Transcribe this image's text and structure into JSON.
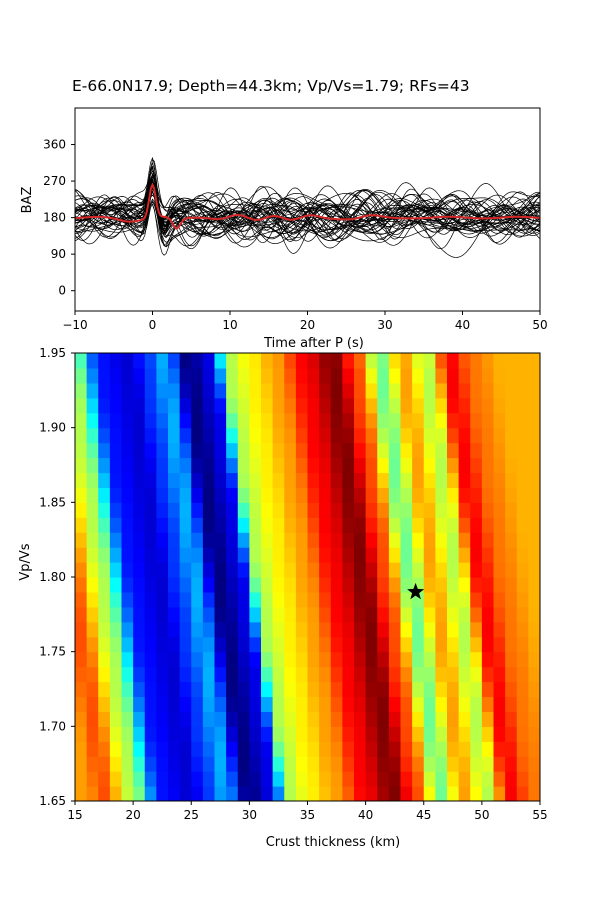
{
  "figure": {
    "title": "E-66.0N17.9; Depth=44.3km; Vp/Vs=1.79; RFs=43"
  },
  "chart_data": [
    {
      "type": "line",
      "name": "receiver-functions",
      "xlabel": "Time after P (s)",
      "ylabel": "BAZ",
      "xlim": [
        -10,
        50
      ],
      "ylim": [
        -50,
        450
      ],
      "xticks": [
        -10,
        0,
        10,
        20,
        30,
        40,
        50
      ],
      "yticks": [
        0,
        90,
        180,
        270,
        360
      ],
      "trace_count": 43,
      "trace_color": "#000000",
      "stack_color": "#d62728",
      "stack_baseline": 180,
      "stack_peak": {
        "x": 0,
        "y": 262
      },
      "traces_visible_range": [
        40,
        290
      ]
    },
    {
      "type": "heatmap",
      "name": "h-kappa-stack",
      "xlabel": "Crust thickness (km)",
      "ylabel": "Vp/Vs",
      "xlim": [
        15,
        55
      ],
      "ylim": [
        1.65,
        1.95
      ],
      "xticks": [
        15,
        20,
        25,
        30,
        35,
        40,
        45,
        50,
        55
      ],
      "yticks": [
        1.65,
        1.7,
        1.75,
        1.8,
        1.85,
        1.9,
        1.95
      ],
      "colormap": "jet",
      "best_fit": {
        "thickness": 44.3,
        "vpvs": 1.79
      },
      "marker": "star",
      "marker_color": "#000000"
    }
  ]
}
